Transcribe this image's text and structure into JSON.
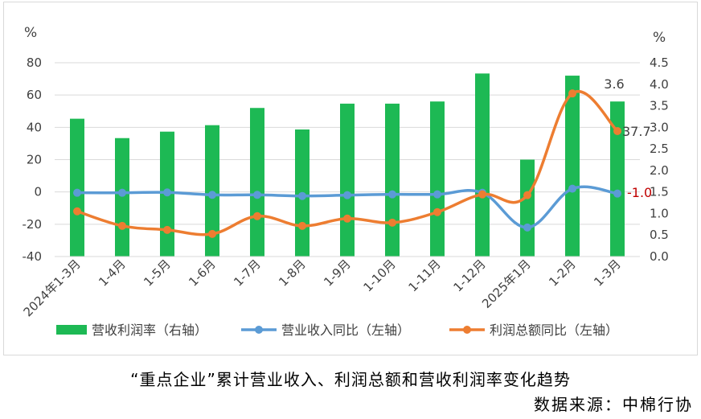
{
  "chart_data": {
    "type": "bar+line",
    "categories": [
      "2024年1-3月",
      "1-4月",
      "1-5月",
      "1-6月",
      "1-7月",
      "1-8月",
      "1-9月",
      "1-10月",
      "1-11月",
      "1-12月",
      "2025年1月",
      "1-2月",
      "1-3月"
    ],
    "left_axis": {
      "unit": "%",
      "ticks": [
        "80",
        "60",
        "40",
        "20",
        "0",
        "-20",
        "-40"
      ],
      "ylim": [
        -40,
        80
      ]
    },
    "right_axis": {
      "unit": "%",
      "ticks": [
        "4.5",
        "4.0",
        "3.5",
        "3.0",
        "2.5",
        "2.0",
        "1.5",
        "1.0",
        "0.5",
        "0.0"
      ],
      "ylim": [
        0,
        4.5
      ]
    },
    "series": [
      {
        "name": "营收利润率（右轴）",
        "type": "bar",
        "axis": "right",
        "color": "#1db954",
        "values": [
          3.2,
          2.75,
          2.9,
          3.05,
          3.45,
          2.95,
          3.55,
          3.55,
          3.6,
          4.25,
          2.25,
          4.2,
          3.6
        ]
      },
      {
        "name": "营业收入同比（左轴）",
        "type": "line",
        "axis": "left",
        "color": "#5b9bd5",
        "values": [
          -0.5,
          -0.5,
          -0.3,
          -1.8,
          -1.8,
          -2.5,
          -2.0,
          -1.5,
          -1.5,
          -0.5,
          -22.0,
          2.0,
          -1.0
        ]
      },
      {
        "name": "利润总额同比（左轴）",
        "type": "line",
        "axis": "left",
        "color": "#ed7d31",
        "values": [
          -12.0,
          -21.0,
          -23.5,
          -26.0,
          -15.0,
          -21.0,
          -16.5,
          -19.0,
          -12.5,
          -1.5,
          -2.0,
          61.0,
          37.7
        ]
      }
    ],
    "data_labels": [
      {
        "text": "3.6",
        "color": "#404040"
      },
      {
        "text": "37.7",
        "color": "#404040"
      },
      {
        "text": "-1.0",
        "color": "#c00000"
      }
    ]
  },
  "caption": "“重点企业”累计营业收入、利润总额和营收利润率变化趋势",
  "source": "数据来源：中棉行协"
}
